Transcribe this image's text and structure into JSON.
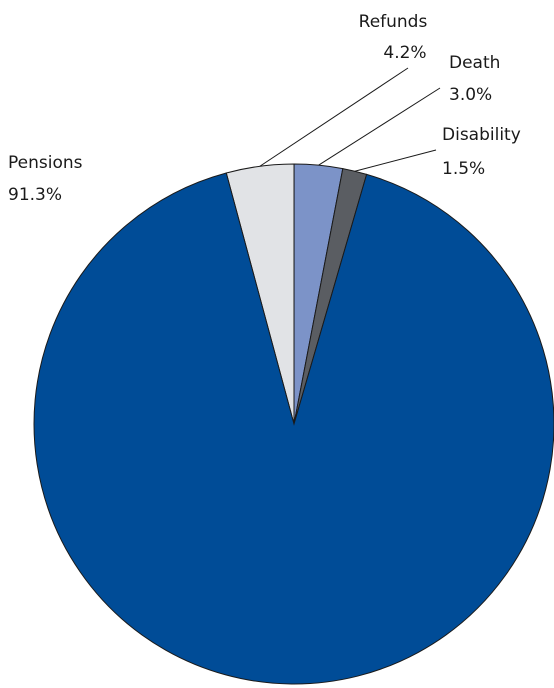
{
  "chart_data": {
    "type": "pie",
    "start_angle_deg": -15.1,
    "direction": "clockwise",
    "slices": [
      {
        "label": "Refunds",
        "value": 4.2,
        "value_label": "4.2%",
        "color": "#e1e3e6"
      },
      {
        "label": "Death",
        "value": 3.0,
        "value_label": "3.0%",
        "color": "#7c93c8"
      },
      {
        "label": "Disability",
        "value": 1.5,
        "value_label": "1.5%",
        "color": "#5a5d62"
      },
      {
        "label": "Pensions",
        "value": 91.3,
        "value_label": "91.3%",
        "color": "#004c97"
      }
    ]
  }
}
